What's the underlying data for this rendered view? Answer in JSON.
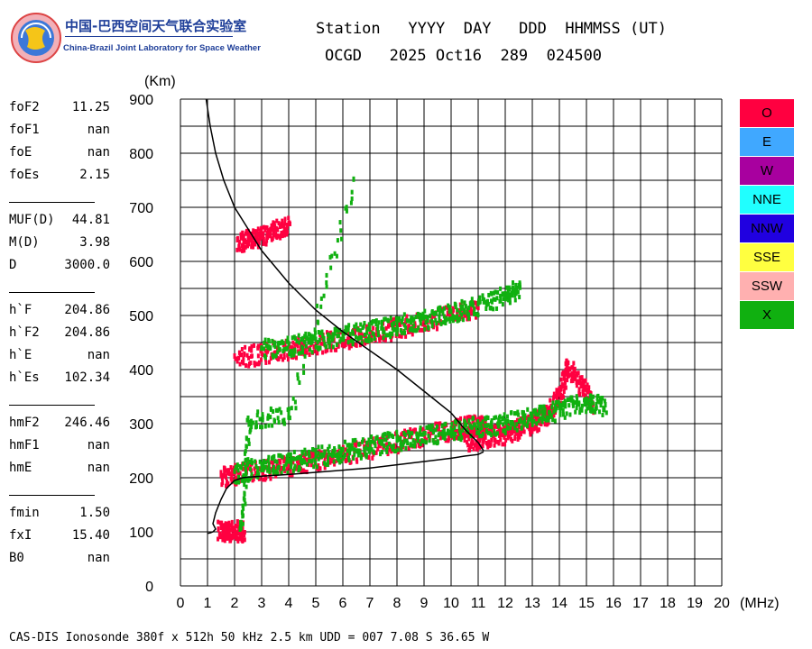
{
  "logo": {
    "cn": "中国-巴西空间天气联合实验室",
    "en": "China-Brazil Joint Laboratory for Space Weather"
  },
  "header": {
    "labels": "Station   YYYY  DAY   DDD  HHMMSS (UT)",
    "values": "OCGD   2025 Oct16  289  024500"
  },
  "params": [
    {
      "name": "foF2",
      "value": "11.25"
    },
    {
      "name": "foF1",
      "value": "nan"
    },
    {
      "name": "foE",
      "value": "nan"
    },
    {
      "name": "foEs",
      "value": "2.15"
    },
    {
      "name": "MUF(D)",
      "value": "44.81"
    },
    {
      "name": "M(D)",
      "value": "3.98"
    },
    {
      "name": "D",
      "value": "3000.0"
    },
    {
      "name": "h`F",
      "value": "204.86"
    },
    {
      "name": "h`F2",
      "value": "204.86"
    },
    {
      "name": "h`E",
      "value": "nan"
    },
    {
      "name": "h`Es",
      "value": "102.34"
    },
    {
      "name": "hmF2",
      "value": "246.46"
    },
    {
      "name": "hmF1",
      "value": "nan"
    },
    {
      "name": "hmE",
      "value": "nan"
    },
    {
      "name": "fmin",
      "value": "1.50"
    },
    {
      "name": "fxI",
      "value": "15.40"
    },
    {
      "name": "B0",
      "value": "nan"
    }
  ],
  "footer": "CAS-DIS Ionosonde 380f x 512h 50 kHz 2.5 km UDD = 007 7.08 S 36.65 W",
  "legend": [
    {
      "label": "O",
      "color": "#ff0040"
    },
    {
      "label": "E",
      "color": "#40a8ff"
    },
    {
      "label": "W",
      "color": "#a8009f"
    },
    {
      "label": "NNE",
      "color": "#20ffff"
    },
    {
      "label": "NNW",
      "color": "#2000e0"
    },
    {
      "label": "SSE",
      "color": "#ffff40"
    },
    {
      "label": "SSW",
      "color": "#ffb0b0"
    },
    {
      "label": "X",
      "color": "#10b010"
    }
  ],
  "chart_data": {
    "type": "scatter",
    "xlabel": "(MHz)",
    "ylabel": "(Km)",
    "xlim": [
      0,
      20
    ],
    "ylim": [
      0,
      900
    ],
    "xticks": [
      0,
      1,
      2,
      3,
      4,
      5,
      6,
      7,
      8,
      9,
      10,
      11,
      12,
      13,
      14,
      15,
      16,
      17,
      18,
      19,
      20
    ],
    "yticks": [
      0,
      100,
      200,
      300,
      400,
      500,
      600,
      700,
      800,
      900
    ],
    "grid": true,
    "series": [
      {
        "name": "O",
        "color": "#ff0040",
        "traces": [
          {
            "x": [
              1.5,
              2.0,
              3.0,
              4.0,
              5.0,
              6.0,
              7.0,
              8.0,
              9.0,
              10.0,
              10.5,
              11.0,
              11.2
            ],
            "y": [
              205,
              210,
              218,
              226,
              236,
              246,
              258,
              270,
              282,
              292,
              298,
              300,
              295
            ]
          },
          {
            "x": [
              10.5,
              11.0,
              11.5,
              12.0,
              12.5,
              13.0,
              13.5,
              14.0,
              14.3,
              14.8,
              15.2
            ],
            "y": [
              270,
              275,
              280,
              285,
              295,
              305,
              320,
              360,
              410,
              370,
              340
            ]
          },
          {
            "x": [
              2.0,
              3.0,
              4.0,
              5.0,
              6.0,
              7.0,
              8.0,
              9.0,
              10.0,
              11.0
            ],
            "y": [
              425,
              433,
              442,
              452,
              460,
              470,
              480,
              492,
              505,
              520
            ]
          },
          {
            "x": [
              2.1,
              2.5,
              3.0,
              3.5,
              4.0
            ],
            "y": [
              640,
              645,
              650,
              660,
              670
            ]
          },
          {
            "x": [
              1.4,
              1.7,
              2.0,
              2.3
            ],
            "y": [
              105,
              105,
              105,
              105
            ]
          }
        ]
      },
      {
        "name": "X",
        "color": "#10b010",
        "traces": [
          {
            "x": [
              2.0,
              3.0,
              4.0,
              5.0,
              6.0,
              7.0,
              8.0,
              9.0,
              10.0,
              11.0,
              12.0,
              13.0,
              14.0,
              15.0,
              15.7
            ],
            "y": [
              212,
              222,
              232,
              242,
              252,
              262,
              272,
              282,
              290,
              298,
              305,
              315,
              330,
              345,
              335
            ]
          },
          {
            "x": [
              3.0,
              4.0,
              5.0,
              6.0,
              7.0,
              8.0,
              9.0,
              10.0,
              11.0,
              12.0,
              12.5
            ],
            "y": [
              440,
              448,
              456,
              466,
              475,
              486,
              496,
              508,
              522,
              540,
              555
            ]
          },
          {
            "x": [
              2.2,
              2.5,
              4.0,
              6.4
            ],
            "y": [
              105,
              310,
              320,
              752
            ]
          }
        ]
      }
    ],
    "profile": {
      "x": [
        1.0,
        1.1,
        1.2,
        1.3,
        1.2,
        1.3,
        1.5,
        1.7,
        2.0,
        2.3,
        2.5,
        3.0,
        4.0,
        5.0,
        6.0,
        7.0,
        8.0,
        9.0,
        10.0,
        10.5,
        11.0,
        11.2
      ],
      "y": [
        97,
        98,
        100,
        105,
        115,
        135,
        160,
        180,
        195,
        200,
        201,
        203,
        206,
        210,
        214,
        218,
        224,
        230,
        236,
        240,
        243,
        248
      ]
    },
    "virtual_trace": {
      "x": [
        0.95,
        1.1,
        1.3,
        1.6,
        2.0,
        2.5,
        3.0,
        3.5,
        4.0,
        4.5,
        5.0,
        6.0,
        7.0,
        8.0,
        9.0,
        10.0,
        10.5,
        11.0,
        11.2
      ],
      "y": [
        900,
        850,
        800,
        750,
        700,
        660,
        620,
        590,
        560,
        535,
        510,
        470,
        435,
        400,
        360,
        320,
        290,
        265,
        250
      ]
    }
  }
}
